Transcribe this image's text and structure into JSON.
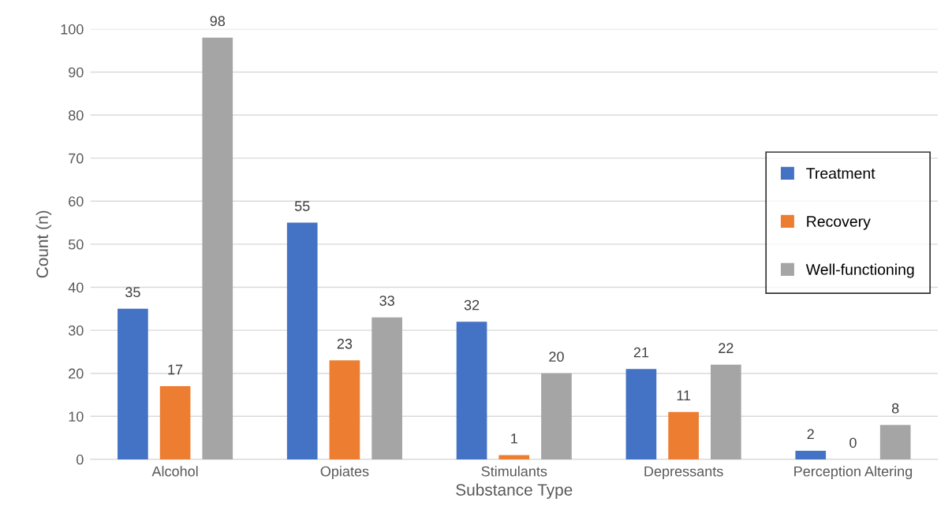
{
  "chart_data": {
    "type": "bar",
    "xlabel": "Substance Type",
    "ylabel": "Count (n)",
    "categories": [
      "Alcohol",
      "Opiates",
      "Stimulants",
      "Depressants",
      "Perception Altering"
    ],
    "series": [
      {
        "name": "Treatment",
        "color": "#4472c4",
        "values": [
          35,
          55,
          32,
          21,
          2
        ]
      },
      {
        "name": "Recovery",
        "color": "#ed7d31",
        "values": [
          17,
          23,
          1,
          11,
          0
        ]
      },
      {
        "name": "Well-functioning",
        "color": "#a5a5a5",
        "values": [
          98,
          33,
          20,
          22,
          8
        ]
      }
    ],
    "ylim": [
      0,
      100
    ],
    "yticks": [
      0,
      10,
      20,
      30,
      40,
      50,
      60,
      70,
      80,
      90,
      100
    ],
    "grid": "y",
    "legend": "center right",
    "data_labels": true
  }
}
